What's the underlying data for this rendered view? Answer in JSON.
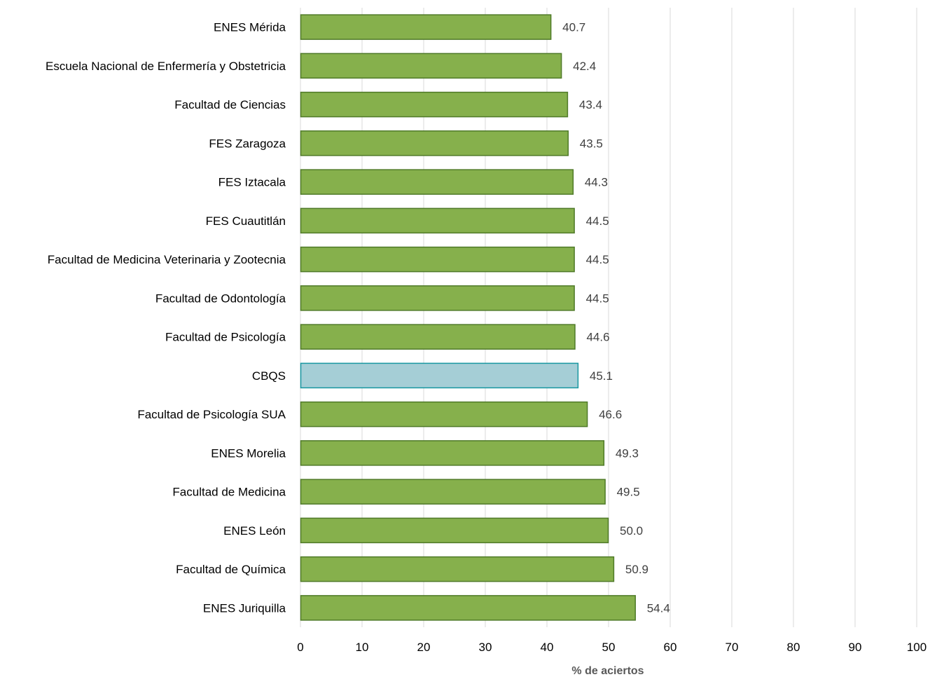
{
  "chart_data": {
    "type": "bar",
    "orientation": "horizontal",
    "categories": [
      "ENES Mérida",
      "Escuela Nacional de Enfermería y Obstetricia",
      "Facultad  de Ciencias",
      "FES Zaragoza",
      "FES Iztacala",
      "FES Cuautitlán",
      "Facultad  de Medicina Veterinaria y Zootecnia",
      "Facultad  de Odontología",
      "Facultad  de Psicología",
      "CBQS",
      "Facultad  de Psicología SUA",
      "ENES Morelia",
      "Facultad  de Medicina",
      "ENES León",
      "Facultad  de Química",
      "ENES Juriquilla"
    ],
    "values": [
      40.7,
      42.4,
      43.4,
      43.5,
      44.3,
      44.5,
      44.5,
      44.5,
      44.6,
      45.1,
      46.6,
      49.3,
      49.5,
      50.0,
      50.9,
      54.4
    ],
    "value_labels": [
      "40.7",
      "42.4",
      "43.4",
      "43.5",
      "44.3",
      "44.5",
      "44.5",
      "44.5",
      "44.6",
      "45.1",
      "46.6",
      "49.3",
      "49.5",
      "50.0",
      "50.9",
      "54.4"
    ],
    "highlight_category": "CBQS",
    "xlabel": "% de aciertos",
    "ylabel": "",
    "xlim": [
      0,
      100
    ],
    "x_ticks": [
      "0",
      "10",
      "20",
      "30",
      "40",
      "50",
      "60",
      "70",
      "80",
      "90",
      "100"
    ],
    "grid": "vertical",
    "legend": "none",
    "colors": {
      "bar_fill": "#86b04c",
      "bar_stroke": "#4f7a28",
      "highlight_fill": "#a5ced6",
      "highlight_stroke": "#1897a1",
      "gridline": "#d9d9d9"
    }
  }
}
